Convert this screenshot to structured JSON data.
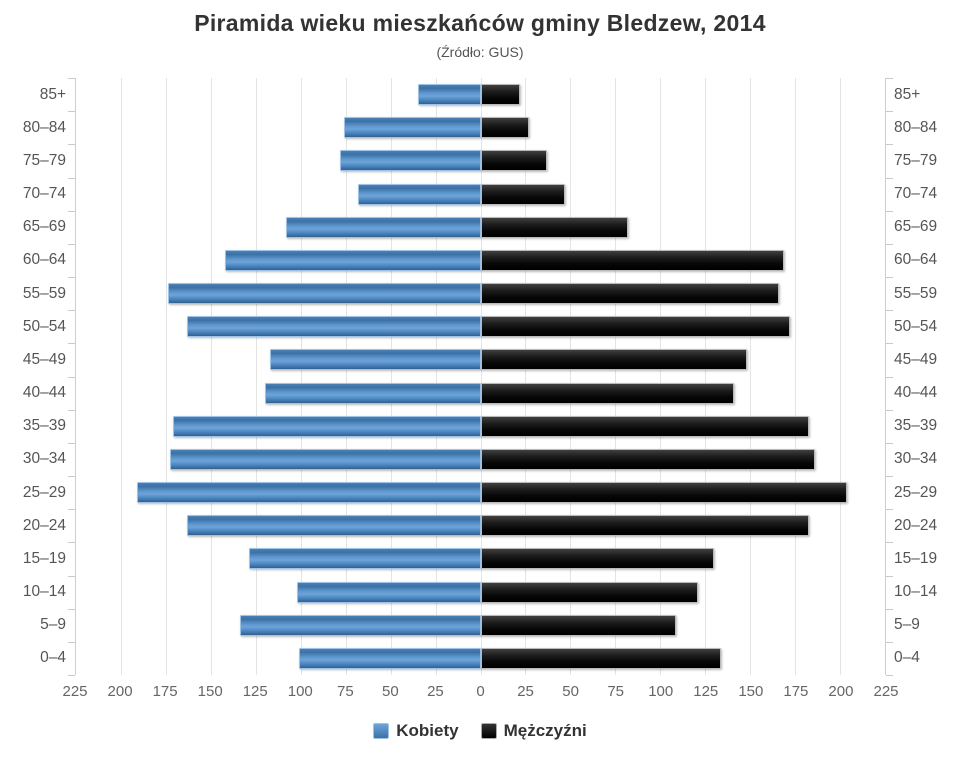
{
  "title": "Piramida wieku mieszkańców gminy Bledzew, 2014",
  "subtitle": "(Źródło: GUS)",
  "legend": {
    "items": [
      {
        "label": "Kobiety",
        "swatch": "female",
        "color": "#4a84bd"
      },
      {
        "label": "Mężczyźni",
        "swatch": "male",
        "color": "#0a0a0a"
      }
    ]
  },
  "colors": {
    "female_bar": "#4a84bd",
    "male_bar": "#0a0a0a",
    "grid": "#e4e4e4",
    "axis_line": "#cfcfcf",
    "title_text": "#333333",
    "subtitle_text": "#555555",
    "axis_text": "#666666",
    "category_text": "#555555"
  },
  "chart_data": {
    "type": "bar",
    "variant": "population-pyramid",
    "title": "Piramida wieku mieszkańców gminy Bledzew, 2014",
    "subtitle": "(Źródło: GUS)",
    "categories_top_to_bottom": [
      "85+",
      "80–84",
      "75–79",
      "70–74",
      "65–69",
      "60–64",
      "55–59",
      "50–54",
      "45–49",
      "40–44",
      "35–39",
      "30–34",
      "25–29",
      "20–24",
      "15–19",
      "10–14",
      "5–9",
      "0–4"
    ],
    "series": [
      {
        "name": "Kobiety",
        "side": "left",
        "values": [
          35,
          76,
          78,
          68,
          108,
          142,
          174,
          163,
          117,
          120,
          171,
          173,
          191,
          163,
          129,
          102,
          134,
          101
        ]
      },
      {
        "name": "Mężczyźni",
        "side": "right",
        "values": [
          22,
          27,
          37,
          47,
          82,
          169,
          166,
          172,
          148,
          141,
          183,
          186,
          204,
          183,
          130,
          121,
          109,
          134
        ]
      }
    ],
    "x_axis": {
      "max_each_side": 225,
      "tick_step": 25,
      "tick_labels": [
        "225",
        "200",
        "175",
        "150",
        "125",
        "100",
        "75",
        "50",
        "25",
        "0",
        "25",
        "50",
        "75",
        "100",
        "125",
        "150",
        "175",
        "200",
        "225"
      ]
    },
    "grid": true,
    "legend_position": "bottom"
  }
}
